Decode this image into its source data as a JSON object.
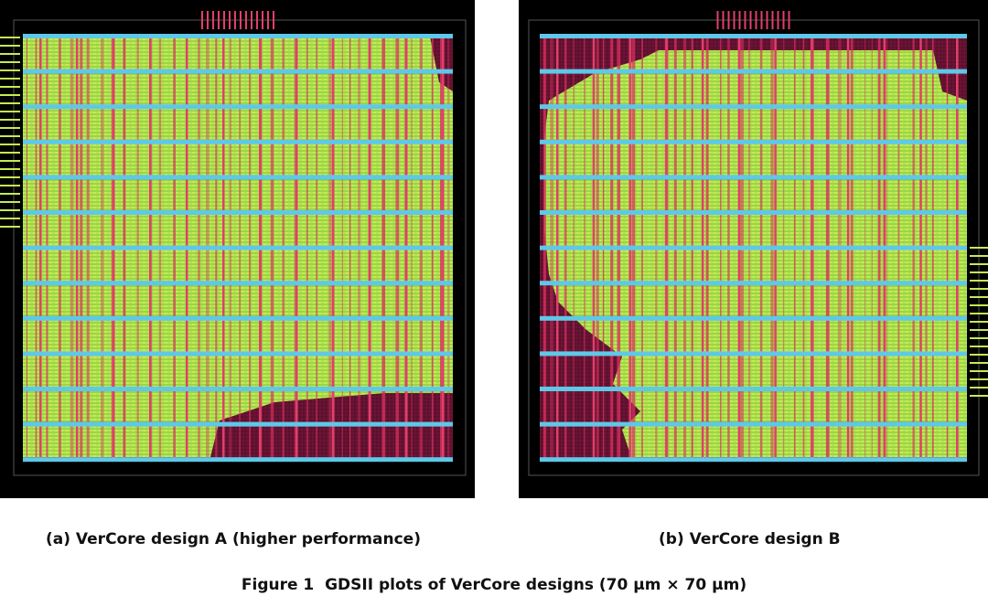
{
  "figure": {
    "subcaptions": [
      "(a)  VerCore design A (higher performance)",
      "(b)  VerCore design B"
    ],
    "label": "Figure 1",
    "caption": "GDSII plots of VerCore designs (70 μm × 70 μm)"
  }
}
